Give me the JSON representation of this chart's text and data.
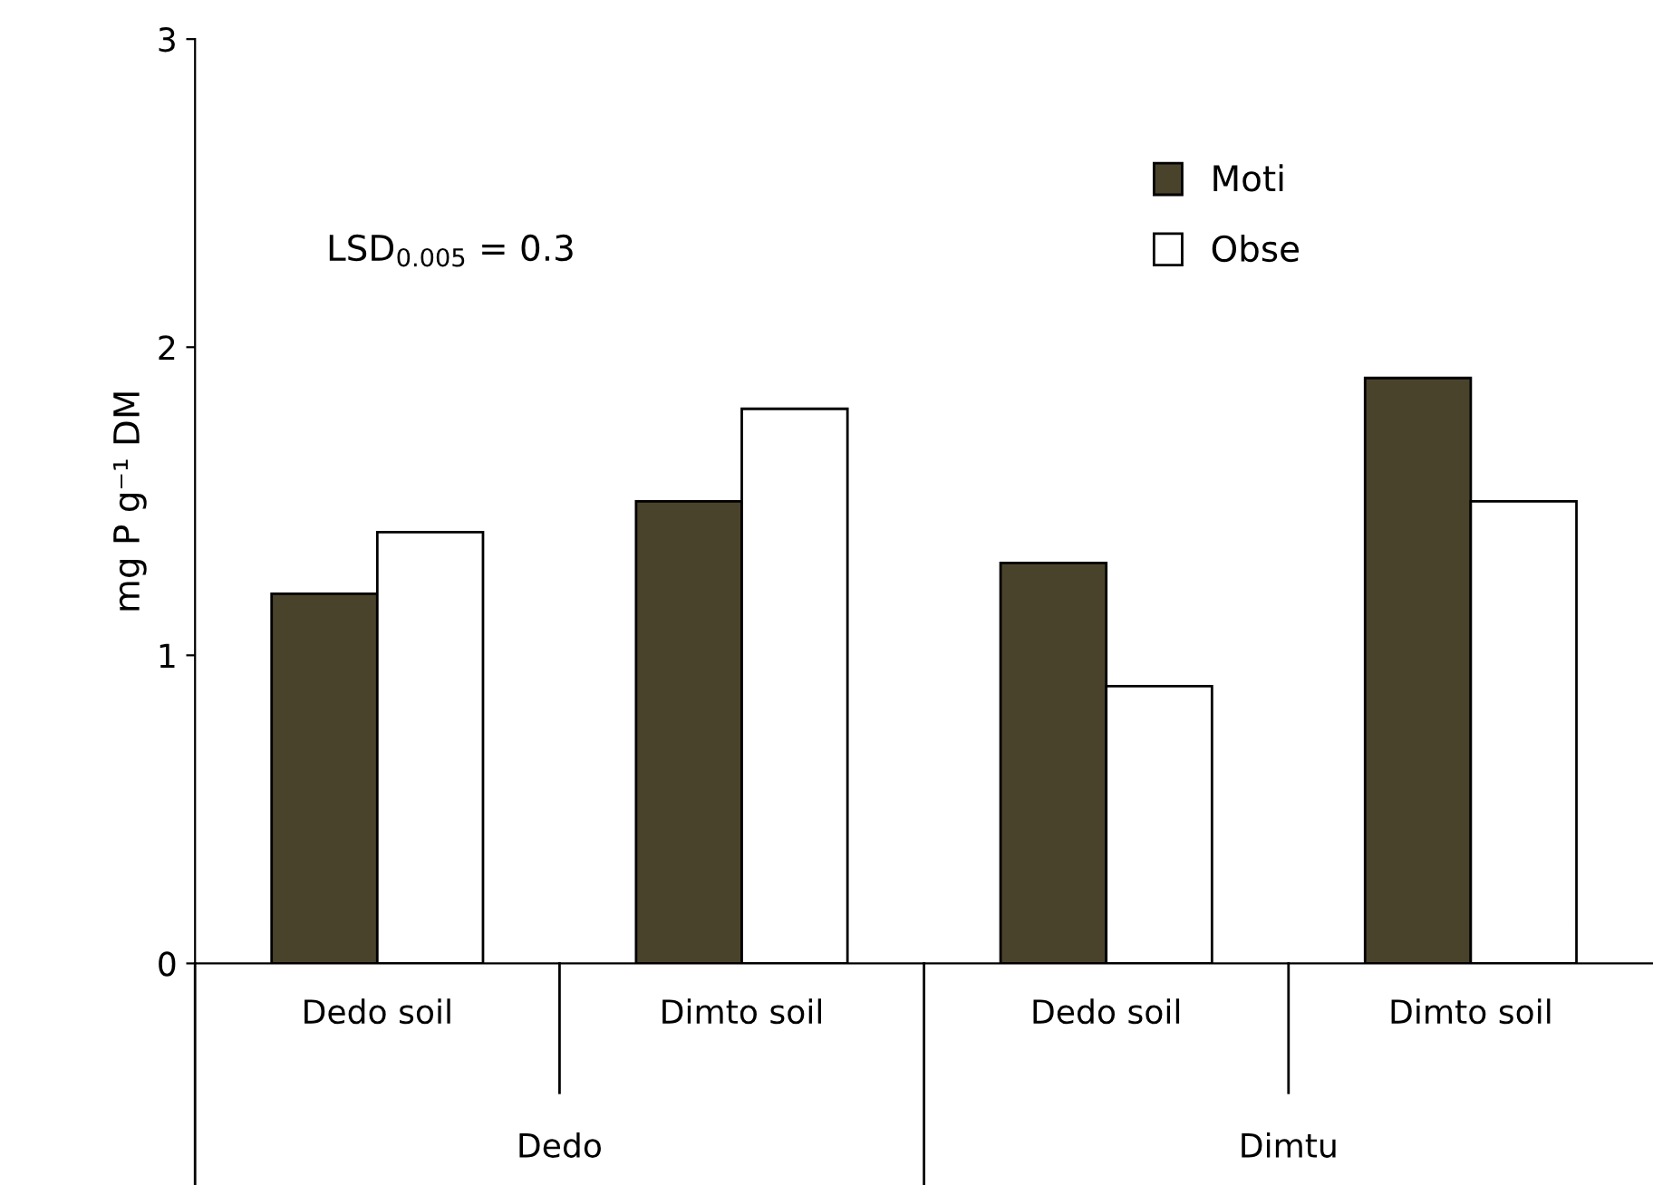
{
  "chart_data": {
    "type": "bar",
    "ylabel": "mg P g⁻¹ DM",
    "categories": [
      "Dedo soil",
      "Dimto soil",
      "Dedo soil",
      "Dimto soil"
    ],
    "series": [
      {
        "name": "Moti",
        "color": "#4a432b",
        "values": [
          1.2,
          1.5,
          1.3,
          1.9
        ]
      },
      {
        "name": "Obse",
        "color": "#ffffff",
        "values": [
          1.4,
          1.8,
          0.9,
          1.5
        ]
      }
    ],
    "ylim": [
      0,
      3
    ],
    "yticks": [
      0,
      1,
      2,
      3
    ],
    "grid": false,
    "legend": "top right",
    "annotations": [
      "LSD$_{0.005}$ = 0.3",
      "Dedo",
      "Dimtu"
    ]
  }
}
